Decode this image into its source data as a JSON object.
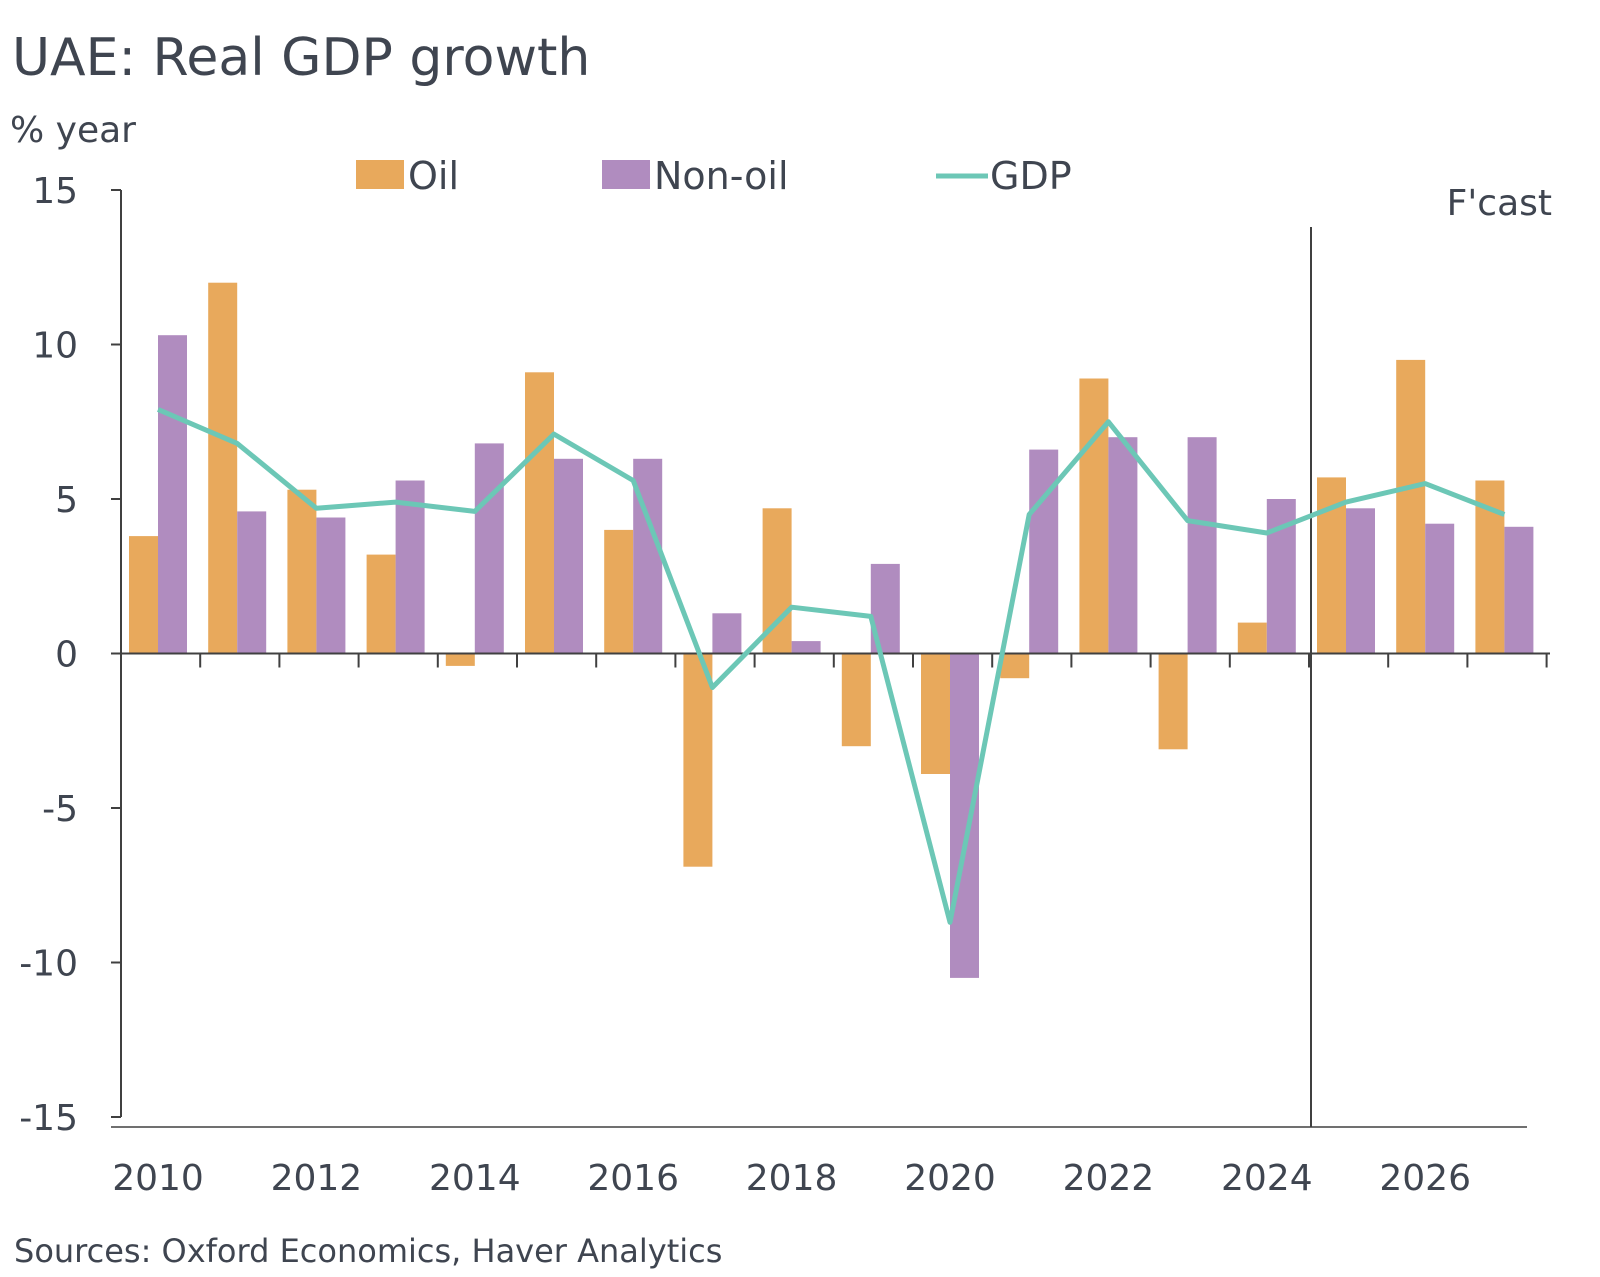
{
  "chart_data": {
    "type": "bar",
    "title": "UAE: Real GDP growth",
    "ylabel": "% year",
    "xlabel": "",
    "ylim": [
      -15,
      15
    ],
    "yticks": [
      -15,
      -10,
      -5,
      0,
      5,
      10,
      15
    ],
    "x": [
      2010,
      2011,
      2012,
      2013,
      2014,
      2015,
      2016,
      2017,
      2018,
      2019,
      2020,
      2021,
      2022,
      2023,
      2024,
      2025,
      2026,
      2027
    ],
    "xtick_labels": [
      "2010",
      "2012",
      "2014",
      "2016",
      "2018",
      "2020",
      "2022",
      "2024",
      "2026"
    ],
    "series": [
      {
        "name": "Oil",
        "kind": "bar",
        "color": "#E8A95C",
        "values": [
          3.8,
          12.0,
          5.3,
          3.2,
          -0.4,
          9.1,
          4.0,
          -6.9,
          4.7,
          -3.0,
          -3.9,
          -0.8,
          8.9,
          -3.1,
          1.0,
          5.7,
          9.5,
          5.6
        ]
      },
      {
        "name": "Non-oil",
        "kind": "bar",
        "color": "#B08CBF",
        "values": [
          10.3,
          4.6,
          4.4,
          5.6,
          6.8,
          6.3,
          6.3,
          1.3,
          0.4,
          2.9,
          -10.5,
          6.6,
          7.0,
          7.0,
          5.0,
          4.7,
          4.2,
          4.1
        ]
      },
      {
        "name": "GDP",
        "kind": "line",
        "color": "#6CC7B6",
        "values": [
          7.9,
          6.8,
          4.7,
          4.9,
          4.6,
          7.1,
          5.6,
          -1.1,
          1.5,
          1.2,
          -8.7,
          4.5,
          7.5,
          4.3,
          3.9,
          4.9,
          5.5,
          4.5
        ]
      }
    ],
    "forecast_label": "F'cast",
    "forecast_start": 2025,
    "legend_position": "top",
    "grid": false
  },
  "source": "Sources: Oxford Economics, Haver Analytics"
}
